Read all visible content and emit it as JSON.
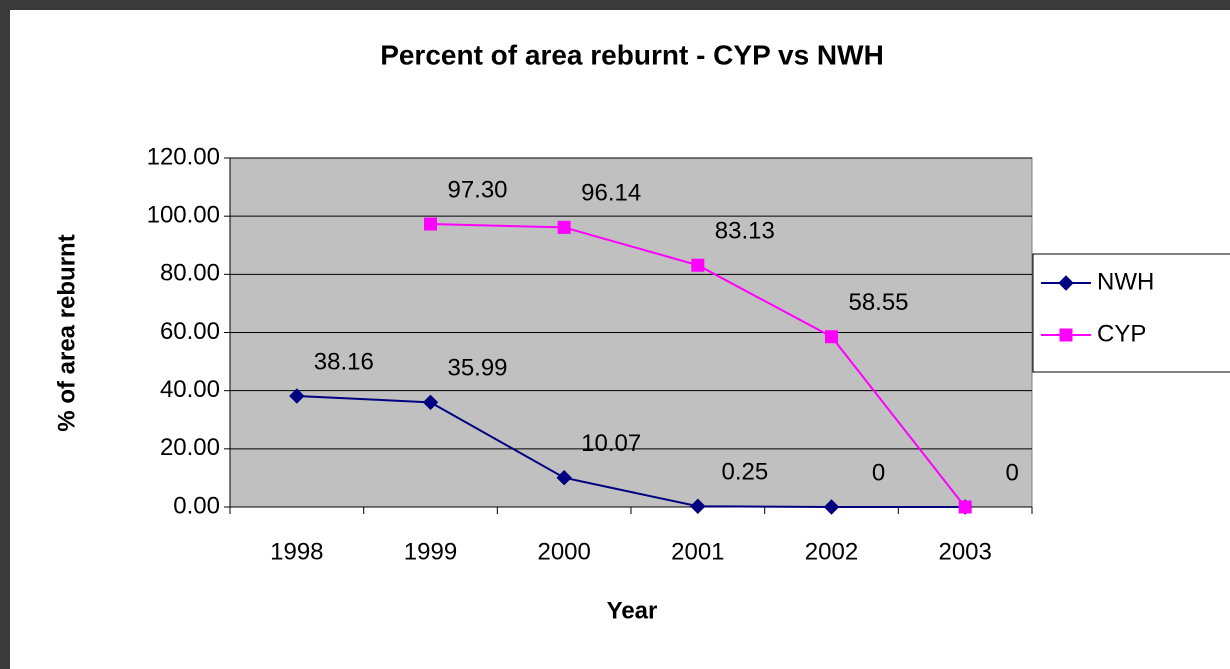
{
  "chart_data": {
    "type": "line",
    "title": "Percent of area reburnt - CYP vs NWH",
    "x_label": "Year",
    "y_label": "% of area reburnt",
    "categories": [
      "1998",
      "1999",
      "2000",
      "2001",
      "2002",
      "2003"
    ],
    "series": [
      {
        "name": "NWH",
        "color": "#000080",
        "marker": "diamond",
        "values": [
          38.16,
          35.99,
          10.07,
          0.25,
          0,
          0
        ],
        "value_labels": [
          "38.16",
          "35.99",
          "10.07",
          "0.25",
          "0",
          null
        ]
      },
      {
        "name": "CYP",
        "color": "#ff00ff",
        "marker": "square",
        "values": [
          null,
          97.3,
          96.14,
          83.13,
          58.55,
          0
        ],
        "value_labels": [
          null,
          "97.30",
          "96.14",
          "83.13",
          "58.55",
          "0"
        ]
      }
    ],
    "ylim": [
      0,
      120
    ],
    "yticks": [
      {
        "value": 0,
        "label": "0.00"
      },
      {
        "value": 20,
        "label": "20.00"
      },
      {
        "value": 40,
        "label": "40.00"
      },
      {
        "value": 60,
        "label": "60.00"
      },
      {
        "value": 80,
        "label": "80.00"
      },
      {
        "value": 100,
        "label": "100.00"
      },
      {
        "value": 120,
        "label": "120.00"
      }
    ],
    "grid": true,
    "legend": "right",
    "plot_background": "#c0c0c0"
  }
}
